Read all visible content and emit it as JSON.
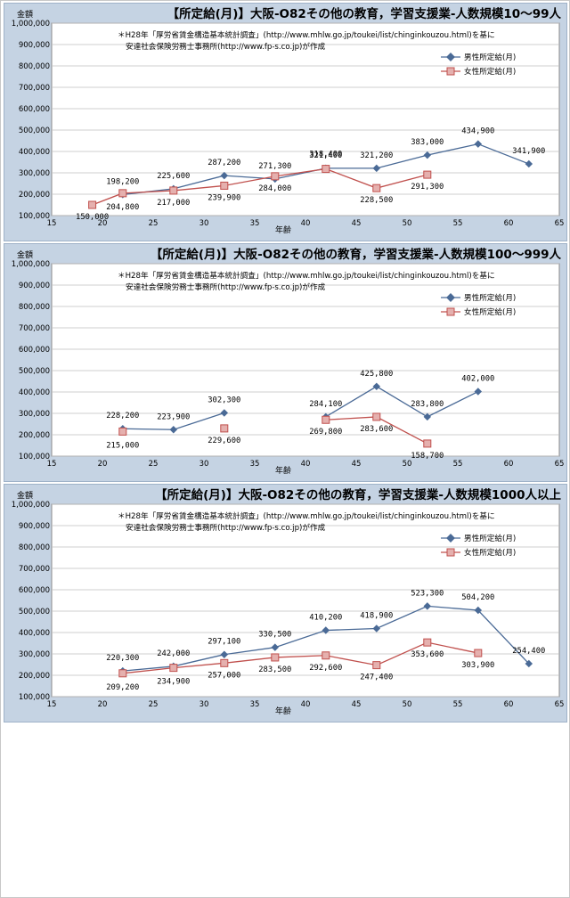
{
  "colors": {
    "male": "#4a6a96",
    "female": "#c0504d",
    "female_fill": "#e5b0ae",
    "panel_bg": "#c5d3e3",
    "plot_bg": "#ffffff"
  },
  "charts": [
    {
      "title": "【所定給(月)】大阪-O82その他の教育，学習支援業-人数規模10～99人",
      "ylabel": "金額",
      "xlabel": "年齢",
      "note1": "＊H28年「厚労省賃金構造基本統計調査」(http://www.mhlw.go.jp/toukei/list/chinginkouzou.html)を基に",
      "note2": "安達社会保険労務士事務所(http://www.fp-s.co.jp)が作成",
      "legend": [
        "男性所定給(月)",
        "女性所定給(月)"
      ],
      "y_ticks": [
        "100,000",
        "200,000",
        "300,000",
        "400,000",
        "500,000",
        "600,000",
        "700,000",
        "800,000",
        "900,000",
        "1,000,000"
      ],
      "x_ticks": [
        "15",
        "20",
        "25",
        "30",
        "35",
        "40",
        "45",
        "50",
        "55",
        "60",
        "65"
      ],
      "male_labels": [
        "198,200",
        "225,600",
        "287,200",
        "271,300",
        "321,400",
        "321,200",
        "383,000",
        "434,900",
        "341,900"
      ],
      "female_labels": [
        "150,000",
        "204,800",
        "217,000",
        "239,900",
        "284,000",
        "318,400",
        "228,500",
        "291,300"
      ]
    },
    {
      "title": "【所定給(月)】大阪-O82その他の教育，学習支援業-人数規模100～999人",
      "ylabel": "金額",
      "xlabel": "年齢",
      "note1": "＊H28年「厚労省賃金構造基本統計調査」(http://www.mhlw.go.jp/toukei/list/chinginkouzou.html)を基に",
      "note2": "安達社会保険労務士事務所(http://www.fp-s.co.jp)が作成",
      "legend": [
        "男性所定給(月)",
        "女性所定給(月)"
      ],
      "y_ticks": [
        "100,000",
        "200,000",
        "300,000",
        "400,000",
        "500,000",
        "600,000",
        "700,000",
        "800,000",
        "900,000",
        "1,000,000"
      ],
      "x_ticks": [
        "15",
        "20",
        "25",
        "30",
        "35",
        "40",
        "45",
        "50",
        "55",
        "60",
        "65"
      ],
      "male_labels": [
        "228,200",
        "223,900",
        "302,300",
        "284,100",
        "425,800",
        "283,800",
        "402,000"
      ],
      "female_labels": [
        "215,000",
        "229,600",
        "269,800",
        "283,600",
        "158,700"
      ]
    },
    {
      "title": "【所定給(月)】大阪-O82その他の教育，学習支援業-人数規模1000人以上",
      "ylabel": "金額",
      "xlabel": "年齢",
      "note1": "＊H28年「厚労省賃金構造基本統計調査」(http://www.mhlw.go.jp/toukei/list/chinginkouzou.html)を基に",
      "note2": "安達社会保険労務士事務所(http://www.fp-s.co.jp)が作成",
      "legend": [
        "男性所定給(月)",
        "女性所定給(月)"
      ],
      "y_ticks": [
        "100,000",
        "200,000",
        "300,000",
        "400,000",
        "500,000",
        "600,000",
        "700,000",
        "800,000",
        "900,000",
        "1,000,000"
      ],
      "x_ticks": [
        "15",
        "20",
        "25",
        "30",
        "35",
        "40",
        "45",
        "50",
        "55",
        "60",
        "65"
      ],
      "male_labels": [
        "220,300",
        "242,000",
        "297,100",
        "330,500",
        "410,200",
        "418,900",
        "523,300",
        "504,200",
        "254,400"
      ],
      "female_labels": [
        "209,200",
        "234,900",
        "257,000",
        "283,500",
        "292,600",
        "247,400",
        "353,600",
        "303,900"
      ]
    }
  ],
  "chart_data": [
    {
      "type": "line",
      "title": "【所定給(月)】大阪-O82その他の教育，学習支援業-人数規模10～99人",
      "xlabel": "年齢",
      "ylabel": "金額",
      "xlim": [
        15,
        65
      ],
      "ylim": [
        100000,
        1000000
      ],
      "grid": true,
      "legend": "top-right",
      "series": [
        {
          "name": "男性所定給(月)",
          "points": [
            [
              22,
              198200
            ],
            [
              27,
              225600
            ],
            [
              32,
              287200
            ],
            [
              37,
              271300
            ],
            [
              42,
              321400
            ],
            [
              47,
              321200
            ],
            [
              52,
              383000
            ],
            [
              57,
              434900
            ],
            [
              62,
              341900
            ]
          ]
        },
        {
          "name": "女性所定給(月)",
          "points": [
            [
              19,
              150000
            ],
            [
              22,
              204800
            ],
            [
              27,
              217000
            ],
            [
              32,
              239900
            ],
            [
              37,
              284000
            ],
            [
              42,
              318400
            ],
            [
              47,
              228500
            ],
            [
              52,
              291300
            ]
          ]
        }
      ]
    },
    {
      "type": "line",
      "title": "【所定給(月)】大阪-O82その他の教育，学習支援業-人数規模100～999人",
      "xlabel": "年齢",
      "ylabel": "金額",
      "xlim": [
        15,
        65
      ],
      "ylim": [
        100000,
        1000000
      ],
      "grid": true,
      "legend": "top-right",
      "series": [
        {
          "name": "男性所定給(月)",
          "segments": [
            [
              [
                22,
                228200
              ],
              [
                27,
                223900
              ],
              [
                32,
                302300
              ]
            ],
            [
              [
                42,
                284100
              ],
              [
                47,
                425800
              ],
              [
                52,
                283800
              ],
              [
                57,
                402000
              ]
            ]
          ]
        },
        {
          "name": "女性所定給(月)",
          "segments": [
            [
              [
                22,
                215000
              ]
            ],
            [
              [
                32,
                229600
              ]
            ],
            [
              [
                42,
                269800
              ],
              [
                47,
                283600
              ],
              [
                52,
                158700
              ]
            ]
          ]
        }
      ]
    },
    {
      "type": "line",
      "title": "【所定給(月)】大阪-O82その他の教育，学習支援業-人数規模1000人以上",
      "xlabel": "年齢",
      "ylabel": "金額",
      "xlim": [
        15,
        65
      ],
      "ylim": [
        100000,
        1000000
      ],
      "grid": true,
      "legend": "top-right",
      "series": [
        {
          "name": "男性所定給(月)",
          "points": [
            [
              22,
              220300
            ],
            [
              27,
              242000
            ],
            [
              32,
              297100
            ],
            [
              37,
              330500
            ],
            [
              42,
              410200
            ],
            [
              47,
              418900
            ],
            [
              52,
              523300
            ],
            [
              57,
              504200
            ],
            [
              62,
              254400
            ]
          ]
        },
        {
          "name": "女性所定給(月)",
          "points": [
            [
              22,
              209200
            ],
            [
              27,
              234900
            ],
            [
              32,
              257000
            ],
            [
              37,
              283500
            ],
            [
              42,
              292600
            ],
            [
              47,
              247400
            ],
            [
              52,
              353600
            ],
            [
              57,
              303900
            ]
          ]
        }
      ]
    }
  ]
}
